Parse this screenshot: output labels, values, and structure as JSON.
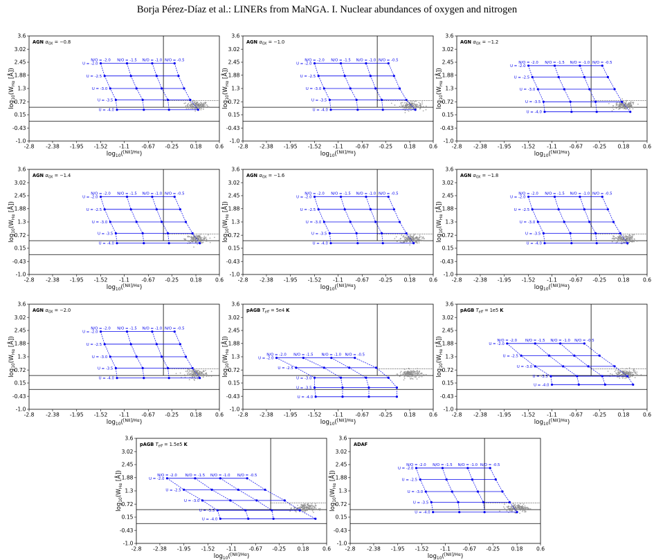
{
  "header": {
    "running_head": "Borja Pérez-Díaz et al.: LINERs from MaNGA. I. Nuclear abundances of oxygen and nitrogen"
  },
  "chart_data": {
    "type": "scatter",
    "shared": {
      "xticks": [
        -2.8,
        -2.38,
        -1.95,
        -1.52,
        -1.1,
        -0.67,
        -0.25,
        0.18,
        0.6
      ],
      "yticks": [
        -1.0,
        -0.43,
        0.15,
        0.72,
        1.3,
        1.88,
        2.45,
        3.02,
        3.6
      ],
      "xtick_labels": [
        "-2.8",
        "-2.38",
        "-1.95",
        "-1.52",
        "-1.1",
        "-0.67",
        "-0.25",
        "0.18",
        "0.6"
      ],
      "ytick_labels": [
        "-1.0",
        "-0.43",
        "0.15",
        "0.72",
        "1.3",
        "1.88",
        "2.45",
        "3.02",
        "3.6"
      ],
      "xlim": [
        -2.8,
        0.6
      ],
      "ylim": [
        -1.0,
        3.6
      ],
      "xlabel": "log10([NII]/Hα)",
      "ylabel": "log10(W_Hα [Å])",
      "u_labels": [
        "U = -2.0",
        "U = -2.5",
        "U = -3.0",
        "U = -3.5",
        "U = -4.0"
      ],
      "no_labels": [
        "N/O = -2.0",
        "N/O = -1.5",
        "N/O = -1.0",
        "N/O = -0.5"
      ],
      "reference_lines": {
        "vertical_x": -0.4,
        "horizontal_solid_y": [
          0.48,
          -0.13
        ],
        "horizontal_dotted_y": 0.77
      },
      "grid": false,
      "colors": {
        "grid_lines": "#0000ee",
        "observed_points": "#8c8c8c",
        "axes": "#000000"
      }
    },
    "panels": [
      {
        "title": "AGN α_OX = −0.8",
        "grid": {
          "U": [
            -2.0,
            -2.5,
            -3.0,
            -3.5,
            -4.0
          ],
          "NO": [
            -2.0,
            -1.5,
            -1.0,
            -0.5
          ],
          "x": [
            [
              -1.52,
              -1.05,
              -0.6,
              -0.2
            ],
            [
              -1.45,
              -0.98,
              -0.52,
              -0.13
            ],
            [
              -1.35,
              -0.88,
              -0.43,
              -0.03
            ],
            [
              -1.25,
              -0.77,
              -0.32,
              0.08
            ],
            [
              -1.23,
              -0.75,
              -0.3,
              0.22
            ]
          ],
          "y": [
            [
              2.4,
              2.4,
              2.4,
              2.4
            ],
            [
              1.85,
              1.85,
              1.85,
              1.85
            ],
            [
              1.3,
              1.3,
              1.3,
              1.3
            ],
            [
              0.8,
              0.8,
              0.8,
              0.8
            ],
            [
              0.37,
              0.37,
              0.37,
              0.37
            ]
          ]
        }
      },
      {
        "title": "AGN α_OX = −1.0",
        "grid": {
          "U": [
            -2.0,
            -2.5,
            -3.0,
            -3.5,
            -4.0
          ],
          "NO": [
            -2.0,
            -1.5,
            -1.0,
            -0.5
          ],
          "x": [
            [
              -1.52,
              -1.05,
              -0.6,
              -0.2
            ],
            [
              -1.45,
              -0.98,
              -0.52,
              -0.1
            ],
            [
              -1.35,
              -0.88,
              -0.43,
              0.0
            ],
            [
              -1.25,
              -0.77,
              -0.32,
              0.12
            ],
            [
              -1.23,
              -0.75,
              -0.3,
              0.28
            ]
          ],
          "y": [
            [
              2.4,
              2.4,
              2.4,
              2.4
            ],
            [
              1.85,
              1.85,
              1.85,
              1.85
            ],
            [
              1.3,
              1.3,
              1.3,
              1.3
            ],
            [
              0.8,
              0.8,
              0.8,
              0.8
            ],
            [
              0.37,
              0.37,
              0.37,
              0.37
            ]
          ]
        }
      },
      {
        "title": "AGN α_OX = −1.2",
        "grid": {
          "U": [
            -2.0,
            -2.5,
            -3.0,
            -3.5,
            -4.0
          ],
          "NO": [
            -2.0,
            -1.5,
            -1.0,
            -0.5
          ],
          "x": [
            [
              -1.52,
              -1.05,
              -0.6,
              -0.2
            ],
            [
              -1.45,
              -0.98,
              -0.52,
              -0.1
            ],
            [
              -1.35,
              -0.88,
              -0.43,
              0.02
            ],
            [
              -1.25,
              -0.77,
              -0.32,
              0.15
            ],
            [
              -1.23,
              -0.75,
              -0.3,
              0.3
            ]
          ],
          "y": [
            [
              2.3,
              2.3,
              2.3,
              2.3
            ],
            [
              1.8,
              1.8,
              1.8,
              1.8
            ],
            [
              1.27,
              1.27,
              1.27,
              1.27
            ],
            [
              0.72,
              0.72,
              0.72,
              0.72
            ],
            [
              0.28,
              0.28,
              0.28,
              0.28
            ]
          ]
        }
      },
      {
        "title": "AGN α_OX = −1.4",
        "grid": {
          "U": [
            -2.0,
            -2.5,
            -3.0,
            -3.5,
            -4.0
          ],
          "NO": [
            -2.0,
            -1.5,
            -1.0,
            -0.5
          ],
          "x": [
            [
              -1.52,
              -1.05,
              -0.6,
              -0.2
            ],
            [
              -1.45,
              -0.98,
              -0.52,
              -0.1
            ],
            [
              -1.35,
              -0.88,
              -0.43,
              0.0
            ],
            [
              -1.25,
              -0.77,
              -0.32,
              0.12
            ],
            [
              -1.23,
              -0.75,
              -0.3,
              0.25
            ]
          ],
          "y": [
            [
              2.4,
              2.4,
              2.4,
              2.4
            ],
            [
              1.85,
              1.85,
              1.85,
              1.85
            ],
            [
              1.3,
              1.3,
              1.3,
              1.3
            ],
            [
              0.8,
              0.8,
              0.8,
              0.8
            ],
            [
              0.37,
              0.37,
              0.37,
              0.37
            ]
          ]
        }
      },
      {
        "title": "AGN α_OX = −1.6",
        "grid": {
          "U": [
            -2.0,
            -2.5,
            -3.0,
            -3.5,
            -4.0
          ],
          "NO": [
            -2.0,
            -1.5,
            -1.0,
            -0.5
          ],
          "x": [
            [
              -1.52,
              -1.05,
              -0.6,
              -0.2
            ],
            [
              -1.45,
              -0.98,
              -0.52,
              -0.1
            ],
            [
              -1.35,
              -0.88,
              -0.43,
              0.0
            ],
            [
              -1.25,
              -0.77,
              -0.32,
              0.12
            ],
            [
              -1.23,
              -0.75,
              -0.3,
              0.25
            ]
          ],
          "y": [
            [
              2.4,
              2.4,
              2.4,
              2.4
            ],
            [
              1.85,
              1.85,
              1.85,
              1.85
            ],
            [
              1.3,
              1.3,
              1.3,
              1.3
            ],
            [
              0.8,
              0.8,
              0.8,
              0.8
            ],
            [
              0.37,
              0.37,
              0.37,
              0.37
            ]
          ]
        }
      },
      {
        "title": "AGN α_OX = −1.8",
        "grid": {
          "U": [
            -2.0,
            -2.5,
            -3.0,
            -3.5,
            -4.0
          ],
          "NO": [
            -2.0,
            -1.5,
            -1.0,
            -0.5
          ],
          "x": [
            [
              -1.52,
              -1.05,
              -0.6,
              -0.2
            ],
            [
              -1.45,
              -0.98,
              -0.52,
              -0.1
            ],
            [
              -1.35,
              -0.88,
              -0.43,
              0.0
            ],
            [
              -1.25,
              -0.77,
              -0.32,
              0.12
            ],
            [
              -1.23,
              -0.75,
              -0.3,
              0.25
            ]
          ],
          "y": [
            [
              2.4,
              2.4,
              2.4,
              2.4
            ],
            [
              1.85,
              1.85,
              1.85,
              1.85
            ],
            [
              1.3,
              1.3,
              1.3,
              1.3
            ],
            [
              0.8,
              0.8,
              0.8,
              0.8
            ],
            [
              0.37,
              0.37,
              0.37,
              0.37
            ]
          ]
        }
      },
      {
        "title": "AGN α_OX = −2.0",
        "grid": {
          "U": [
            -2.0,
            -2.5,
            -3.0,
            -3.5,
            -4.0
          ],
          "NO": [
            -2.0,
            -1.5,
            -1.0,
            -0.5
          ],
          "x": [
            [
              -1.52,
              -1.05,
              -0.6,
              -0.2
            ],
            [
              -1.45,
              -0.98,
              -0.52,
              -0.1
            ],
            [
              -1.35,
              -0.88,
              -0.43,
              0.0
            ],
            [
              -1.25,
              -0.77,
              -0.32,
              0.12
            ],
            [
              -1.23,
              -0.75,
              -0.3,
              0.25
            ]
          ],
          "y": [
            [
              2.4,
              2.4,
              2.4,
              2.4
            ],
            [
              1.85,
              1.85,
              1.85,
              1.85
            ],
            [
              1.3,
              1.3,
              1.3,
              1.3
            ],
            [
              0.8,
              0.8,
              0.8,
              0.8
            ],
            [
              0.37,
              0.37,
              0.37,
              0.37
            ]
          ]
        }
      },
      {
        "title": "pAGB T_eff = 5e4 K",
        "grid": {
          "U": [
            -2.0,
            -2.5,
            -3.0,
            -3.5,
            -4.0
          ],
          "NO": [
            -2.0,
            -1.5,
            -1.0,
            -0.5
          ],
          "x": [
            [
              -2.2,
              -1.72,
              -1.22,
              -0.8
            ],
            [
              -1.85,
              -1.35,
              -0.9,
              -0.42
            ],
            [
              -1.52,
              -1.05,
              -0.6,
              -0.2
            ],
            [
              -1.52,
              -1.02,
              -0.55,
              -0.05
            ],
            [
              -1.5,
              -1.02,
              -0.55,
              -0.05
            ]
          ],
          "y": [
            [
              1.25,
              1.25,
              1.25,
              1.25
            ],
            [
              0.82,
              0.82,
              0.82,
              0.82
            ],
            [
              0.38,
              0.38,
              0.38,
              0.38
            ],
            [
              -0.05,
              -0.05,
              -0.05,
              -0.05
            ],
            [
              -0.45,
              -0.45,
              -0.45,
              -0.45
            ]
          ]
        }
      },
      {
        "title": "pAGB T_eff = 1e5 K",
        "grid": {
          "U": [
            -2.0,
            -2.5,
            -3.0,
            -3.5,
            -4.0
          ],
          "NO": [
            -2.0,
            -1.5,
            -1.0,
            -0.5
          ],
          "x": [
            [
              -1.9,
              -1.4,
              -0.95,
              -0.52
            ],
            [
              -1.65,
              -1.15,
              -0.7,
              -0.25
            ],
            [
              -1.4,
              -0.9,
              -0.45,
              0.02
            ],
            [
              -1.12,
              -0.65,
              -0.2,
              0.25
            ],
            [
              -1.1,
              -0.62,
              -0.15,
              0.35
            ]
          ],
          "y": [
            [
              1.88,
              1.88,
              1.88,
              1.88
            ],
            [
              1.35,
              1.35,
              1.35,
              1.35
            ],
            [
              0.88,
              0.88,
              0.88,
              0.88
            ],
            [
              0.45,
              0.45,
              0.45,
              0.45
            ],
            [
              0.08,
              0.08,
              0.08,
              0.08
            ]
          ]
        }
      },
      {
        "title": "pAGB T_eff = 1.5e5 K",
        "grid": {
          "U": [
            -2.0,
            -2.5,
            -3.0,
            -3.5,
            -4.0
          ],
          "NO": [
            -2.0,
            -1.5,
            -1.0,
            -0.5
          ],
          "x": [
            [
              -2.25,
              -1.75,
              -1.3,
              -0.82
            ],
            [
              -1.95,
              -1.45,
              -0.98,
              -0.5
            ],
            [
              -1.62,
              -1.12,
              -0.65,
              -0.15
            ],
            [
              -1.35,
              -0.85,
              -0.38,
              0.12
            ],
            [
              -1.3,
              -0.8,
              -0.35,
              0.4
            ]
          ],
          "y": [
            [
              1.85,
              1.85,
              1.85,
              1.85
            ],
            [
              1.35,
              1.35,
              1.35,
              1.35
            ],
            [
              0.88,
              0.88,
              0.88,
              0.88
            ],
            [
              0.45,
              0.45,
              0.45,
              0.45
            ],
            [
              0.08,
              0.08,
              0.08,
              0.08
            ]
          ]
        }
      },
      {
        "title": "ADAF",
        "grid": {
          "U": [
            -2.0,
            -2.5,
            -3.0,
            -3.5,
            -4.0
          ],
          "NO": [
            -2.0,
            -1.5,
            -1.0,
            -0.5
          ],
          "x": [
            [
              -1.62,
              -1.15,
              -0.7,
              -0.3
            ],
            [
              -1.55,
              -1.08,
              -0.62,
              -0.2
            ],
            [
              -1.45,
              -0.98,
              -0.52,
              -0.08
            ],
            [
              -1.35,
              -0.87,
              -0.42,
              0.05
            ],
            [
              -1.32,
              -0.85,
              -0.4,
              0.18
            ]
          ],
          "y": [
            [
              2.3,
              2.3,
              2.3,
              2.3
            ],
            [
              1.8,
              1.8,
              1.8,
              1.8
            ],
            [
              1.27,
              1.27,
              1.27,
              1.27
            ],
            [
              0.8,
              0.8,
              0.8,
              0.8
            ],
            [
              0.37,
              0.37,
              0.37,
              0.37
            ]
          ]
        }
      }
    ],
    "observed": {
      "x_center": 0.2,
      "x_spread": 0.22,
      "y_center": 0.55,
      "y_spread": 0.2,
      "count": 160
    }
  }
}
